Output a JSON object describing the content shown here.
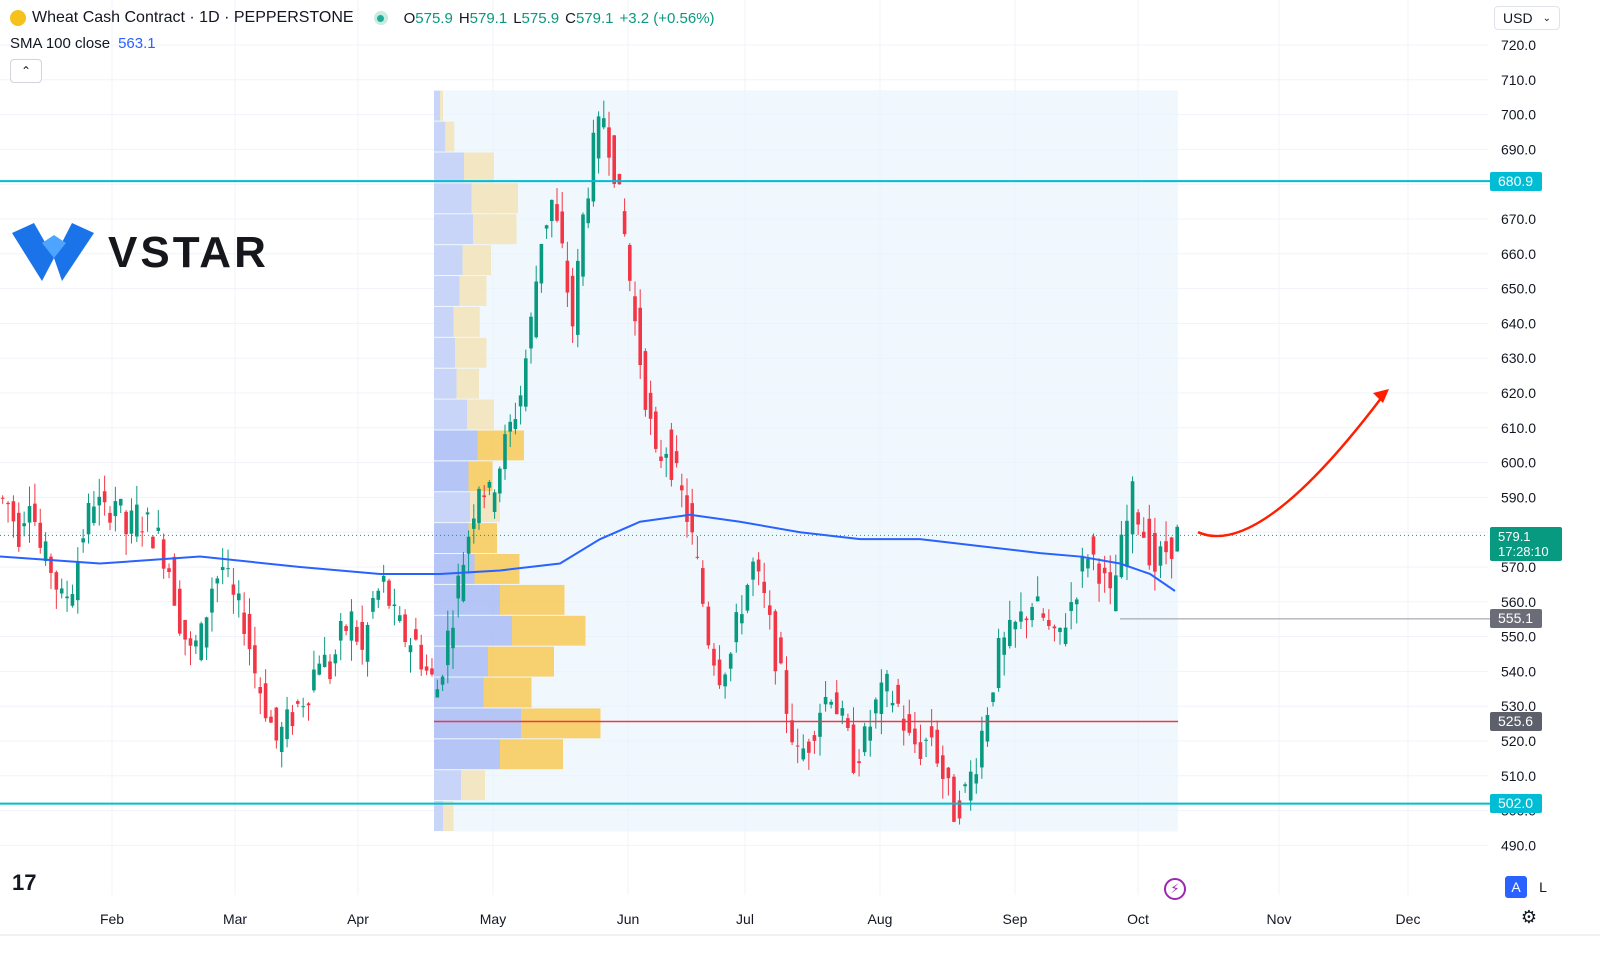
{
  "header": {
    "symbol": "Wheat Cash Contract · 1D · PEPPERSTONE",
    "open_label": "O",
    "open": "575.9",
    "high_label": "H",
    "high": "579.1",
    "low_label": "L",
    "low": "575.9",
    "close_label": "C",
    "close": "579.1",
    "change": "+3.2 (+0.56%)"
  },
  "indicator": {
    "name": "SMA 100 close",
    "value": "563.1"
  },
  "currency": "USD",
  "logo_text": "VSTAR",
  "tv_logo": "17",
  "buttons": {
    "auto": "A",
    "log": "L"
  },
  "price_tag": {
    "price": "579.1",
    "countdown": "17:28:10"
  },
  "level_tags": [
    {
      "value": "680.9",
      "price": 680.9,
      "color": "#00bcd4"
    },
    {
      "value": "555.1",
      "price": 555.1,
      "color": "#6a6d78"
    },
    {
      "value": "525.6",
      "price": 525.6,
      "color": "#5d606b"
    },
    {
      "value": "502.0",
      "price": 502.0,
      "color": "#00bcd4"
    }
  ],
  "colors": {
    "up": "#089981",
    "down": "#f23645",
    "sma": "#2962ff",
    "hline": "#00bcd4",
    "poc": "#f23645",
    "arrow": "#ff1e00"
  },
  "chart_data": {
    "type": "candlestick",
    "title": "Wheat Cash Contract · 1D · PEPPERSTONE",
    "y_axis": {
      "min": 490,
      "max": 720,
      "ticks": [
        720,
        710,
        700,
        690,
        680,
        670,
        660,
        650,
        640,
        630,
        620,
        610,
        600,
        590,
        580,
        570,
        560,
        550,
        540,
        530,
        520,
        510,
        500,
        490
      ]
    },
    "x_axis": {
      "labels": [
        "Feb",
        "Mar",
        "Apr",
        "May",
        "Jun",
        "Jul",
        "Aug",
        "Sep",
        "Oct",
        "Nov",
        "Dec"
      ]
    },
    "segments": [
      {
        "from_x": 0,
        "to_x": 440,
        "values": [
          590,
          588,
          580,
          592,
          575,
          570,
          560,
          565,
          580,
          590,
          585,
          590,
          580,
          585,
          582,
          578,
          570,
          555,
          545,
          550,
          565,
          570,
          560,
          555,
          540,
          530,
          520,
          525,
          530,
          535,
          545,
          540,
          550,
          555,
          545,
          560,
          565,
          555,
          550,
          548,
          540,
          535
        ]
      },
      {
        "from_x": 440,
        "to_x": 700,
        "values": [
          535,
          550,
          565,
          580,
          595,
          590,
          600,
          610,
          620,
          640,
          665,
          675,
          660,
          640,
          670,
          690,
          700,
          685,
          665,
          640,
          620,
          600,
          605,
          595,
          585,
          570
        ]
      },
      {
        "from_x": 700,
        "to_x": 1180,
        "values": [
          570,
          550,
          540,
          545,
          560,
          570,
          560,
          545,
          530,
          515,
          520,
          530,
          535,
          525,
          515,
          520,
          530,
          535,
          530,
          520,
          518,
          522,
          510,
          500,
          505,
          515,
          530,
          545,
          550,
          555,
          560,
          555,
          548,
          555,
          565,
          575,
          570,
          560,
          575,
          590,
          580,
          570,
          575,
          579
        ]
      }
    ],
    "sma100": {
      "name": "SMA 100 close",
      "points": [
        [
          0,
          573
        ],
        [
          100,
          571
        ],
        [
          200,
          573
        ],
        [
          300,
          570
        ],
        [
          380,
          568
        ],
        [
          440,
          568
        ],
        [
          500,
          569
        ],
        [
          560,
          571
        ],
        [
          600,
          578
        ],
        [
          640,
          583
        ],
        [
          690,
          585
        ],
        [
          740,
          583
        ],
        [
          800,
          580
        ],
        [
          860,
          578
        ],
        [
          920,
          578
        ],
        [
          980,
          576
        ],
        [
          1040,
          574
        ],
        [
          1080,
          573
        ],
        [
          1120,
          571
        ],
        [
          1150,
          568
        ],
        [
          1175,
          563.1
        ]
      ]
    },
    "volume_profile": {
      "x_start": 434,
      "x_end": 1178,
      "top_price": 707,
      "bottom_price": 494,
      "rows": [
        {
          "blue": 8,
          "yellow": 4
        },
        {
          "blue": 15,
          "yellow": 12
        },
        {
          "blue": 40,
          "yellow": 40
        },
        {
          "blue": 50,
          "yellow": 62
        },
        {
          "blue": 52,
          "yellow": 58
        },
        {
          "blue": 38,
          "yellow": 38
        },
        {
          "blue": 34,
          "yellow": 36
        },
        {
          "blue": 26,
          "yellow": 35
        },
        {
          "blue": 28,
          "yellow": 42
        },
        {
          "blue": 30,
          "yellow": 30
        },
        {
          "blue": 44,
          "yellow": 36
        },
        {
          "blue": 58,
          "yellow": 62
        },
        {
          "blue": 46,
          "yellow": 32
        },
        {
          "blue": 48,
          "yellow": 40
        },
        {
          "blue": 46,
          "yellow": 38
        },
        {
          "blue": 54,
          "yellow": 60
        },
        {
          "blue": 88,
          "yellow": 86
        },
        {
          "blue": 104,
          "yellow": 98
        },
        {
          "blue": 72,
          "yellow": 88
        },
        {
          "blue": 66,
          "yellow": 64
        },
        {
          "blue": 116,
          "yellow": 106
        },
        {
          "blue": 88,
          "yellow": 84
        },
        {
          "blue": 36,
          "yellow": 32
        },
        {
          "blue": 12,
          "yellow": 14
        }
      ]
    },
    "horizontal_lines": [
      {
        "price": 680.9,
        "color": "#00bcd4",
        "width": 2,
        "from_x": 0,
        "to_x": 1490
      },
      {
        "price": 502.0,
        "color": "#00bcd4",
        "width": 2,
        "from_x": 0,
        "to_x": 1490
      },
      {
        "price": 525.6,
        "color": "#f23645",
        "width": 1.5,
        "from_x": 434,
        "to_x": 1178
      },
      {
        "price": 555.1,
        "color": "#9598a1",
        "width": 1,
        "from_x": 1120,
        "to_x": 1490
      }
    ],
    "current_price": 579.1,
    "forecast_arrow": {
      "start": [
        1198,
        580
      ],
      "control": [
        1260,
        575
      ],
      "end": [
        1385,
        620
      ]
    }
  }
}
